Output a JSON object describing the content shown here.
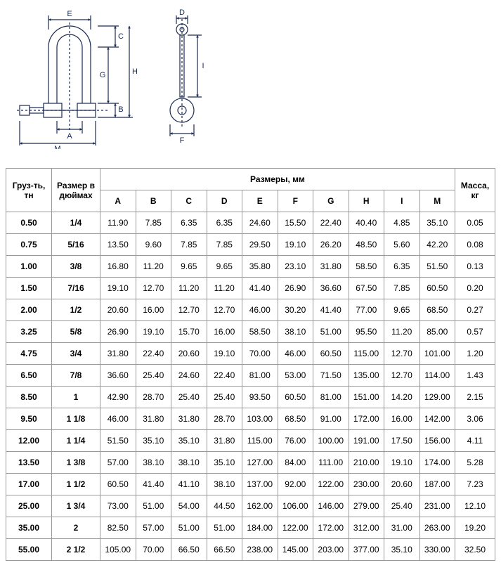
{
  "diagram": {
    "stroke": "#1a2a52",
    "stroke_width": 1.2,
    "labels": [
      "A",
      "B",
      "C",
      "D",
      "E",
      "F",
      "G",
      "H",
      "I",
      "M"
    ]
  },
  "table": {
    "headers": {
      "load": "Груз-ть, тн",
      "inch": "Размер в дюймах",
      "dims": "Размеры, мм",
      "mass": "Масса, кг",
      "cols": [
        "A",
        "B",
        "C",
        "D",
        "E",
        "F",
        "G",
        "H",
        "I",
        "M"
      ]
    },
    "rows": [
      {
        "load": "0.50",
        "inch": "1/4",
        "A": "11.90",
        "B": "7.85",
        "C": "6.35",
        "D": "6.35",
        "E": "24.60",
        "F": "15.50",
        "G": "22.40",
        "H": "40.40",
        "I": "4.85",
        "M": "35.10",
        "mass": "0.05"
      },
      {
        "load": "0.75",
        "inch": "5/16",
        "A": "13.50",
        "B": "9.60",
        "C": "7.85",
        "D": "7.85",
        "E": "29.50",
        "F": "19.10",
        "G": "26.20",
        "H": "48.50",
        "I": "5.60",
        "M": "42.20",
        "mass": "0.08"
      },
      {
        "load": "1.00",
        "inch": "3/8",
        "A": "16.80",
        "B": "11.20",
        "C": "9.65",
        "D": "9.65",
        "E": "35.80",
        "F": "23.10",
        "G": "31.80",
        "H": "58.50",
        "I": "6.35",
        "M": "51.50",
        "mass": "0.13"
      },
      {
        "load": "1.50",
        "inch": "7/16",
        "A": "19.10",
        "B": "12.70",
        "C": "11.20",
        "D": "11.20",
        "E": "41.40",
        "F": "26.90",
        "G": "36.60",
        "H": "67.50",
        "I": "7.85",
        "M": "60.50",
        "mass": "0.20"
      },
      {
        "load": "2.00",
        "inch": "1/2",
        "A": "20.60",
        "B": "16.00",
        "C": "12.70",
        "D": "12.70",
        "E": "46.00",
        "F": "30.20",
        "G": "41.40",
        "H": "77.00",
        "I": "9.65",
        "M": "68.50",
        "mass": "0.27"
      },
      {
        "load": "3.25",
        "inch": "5/8",
        "A": "26.90",
        "B": "19.10",
        "C": "15.70",
        "D": "16.00",
        "E": "58.50",
        "F": "38.10",
        "G": "51.00",
        "H": "95.50",
        "I": "11.20",
        "M": "85.00",
        "mass": "0.57"
      },
      {
        "load": "4.75",
        "inch": "3/4",
        "A": "31.80",
        "B": "22.40",
        "C": "20.60",
        "D": "19.10",
        "E": "70.00",
        "F": "46.00",
        "G": "60.50",
        "H": "115.00",
        "I": "12.70",
        "M": "101.00",
        "mass": "1.20"
      },
      {
        "load": "6.50",
        "inch": "7/8",
        "A": "36.60",
        "B": "25.40",
        "C": "24.60",
        "D": "22.40",
        "E": "81.00",
        "F": "53.00",
        "G": "71.50",
        "H": "135.00",
        "I": "12.70",
        "M": "114.00",
        "mass": "1.43"
      },
      {
        "load": "8.50",
        "inch": "1",
        "A": "42.90",
        "B": "28.70",
        "C": "25.40",
        "D": "25.40",
        "E": "93.50",
        "F": "60.50",
        "G": "81.00",
        "H": "151.00",
        "I": "14.20",
        "M": "129.00",
        "mass": "2.15"
      },
      {
        "load": "9.50",
        "inch": "1 1/8",
        "A": "46.00",
        "B": "31.80",
        "C": "31.80",
        "D": "28.70",
        "E": "103.00",
        "F": "68.50",
        "G": "91.00",
        "H": "172.00",
        "I": "16.00",
        "M": "142.00",
        "mass": "3.06"
      },
      {
        "load": "12.00",
        "inch": "1 1/4",
        "A": "51.50",
        "B": "35.10",
        "C": "35.10",
        "D": "31.80",
        "E": "115.00",
        "F": "76.00",
        "G": "100.00",
        "H": "191.00",
        "I": "17.50",
        "M": "156.00",
        "mass": "4.11"
      },
      {
        "load": "13.50",
        "inch": "1 3/8",
        "A": "57.00",
        "B": "38.10",
        "C": "38.10",
        "D": "35.10",
        "E": "127.00",
        "F": "84.00",
        "G": "111.00",
        "H": "210.00",
        "I": "19.10",
        "M": "174.00",
        "mass": "5.28"
      },
      {
        "load": "17.00",
        "inch": "1 1/2",
        "A": "60.50",
        "B": "41.40",
        "C": "41.10",
        "D": "38.10",
        "E": "137.00",
        "F": "92.00",
        "G": "122.00",
        "H": "230.00",
        "I": "20.60",
        "M": "187.00",
        "mass": "7.23"
      },
      {
        "load": "25.00",
        "inch": "1 3/4",
        "A": "73.00",
        "B": "51.00",
        "C": "54.00",
        "D": "44.50",
        "E": "162.00",
        "F": "106.00",
        "G": "146.00",
        "H": "279.00",
        "I": "25.40",
        "M": "231.00",
        "mass": "12.10"
      },
      {
        "load": "35.00",
        "inch": "2",
        "A": "82.50",
        "B": "57.00",
        "C": "51.00",
        "D": "51.00",
        "E": "184.00",
        "F": "122.00",
        "G": "172.00",
        "H": "312.00",
        "I": "31.00",
        "M": "263.00",
        "mass": "19.20"
      },
      {
        "load": "55.00",
        "inch": "2 1/2",
        "A": "105.00",
        "B": "70.00",
        "C": "66.50",
        "D": "66.50",
        "E": "238.00",
        "F": "145.00",
        "G": "203.00",
        "H": "377.00",
        "I": "35.10",
        "M": "330.00",
        "mass": "32.50"
      }
    ]
  }
}
